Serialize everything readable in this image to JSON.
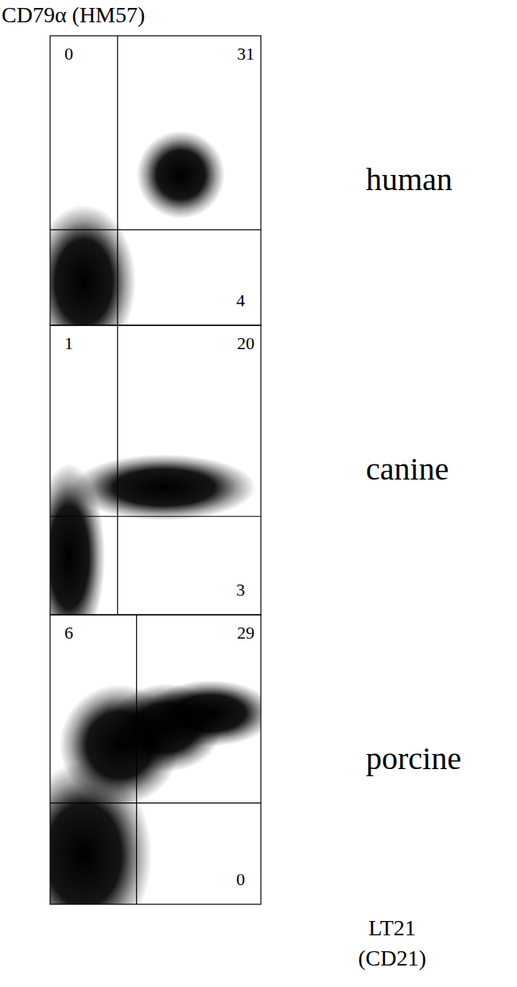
{
  "figure": {
    "y_label": "CD79α (HM57)",
    "x_label_lines": [
      "LT21",
      "(CD21)"
    ]
  },
  "chart_data": [
    {
      "type": "scatter",
      "title": "human",
      "xlim": [
        0,
        100
      ],
      "ylim": [
        0,
        100
      ],
      "tick_labels": false,
      "gate_x": 32,
      "gate_y": 33,
      "quadrant_percentages": {
        "upper_left": 0,
        "upper_right": 31,
        "lower_right": 4
      },
      "populations": [
        {
          "x": 16,
          "y": 15,
          "sx": 13,
          "sy": 14
        },
        {
          "x": 62,
          "y": 52,
          "sx": 11,
          "sy": 8
        }
      ]
    },
    {
      "type": "scatter",
      "title": "canine",
      "xlim": [
        0,
        100
      ],
      "ylim": [
        0,
        100
      ],
      "tick_labels": false,
      "gate_x": 32,
      "gate_y": 34,
      "quadrant_percentages": {
        "upper_left": 1,
        "upper_right": 20,
        "lower_right": 3
      },
      "populations": [
        {
          "x": 9,
          "y": 20,
          "sx": 9,
          "sy": 17
        },
        {
          "x": 54,
          "y": 44,
          "sx": 23,
          "sy": 6
        }
      ]
    },
    {
      "type": "scatter",
      "title": "porcine",
      "xlim": [
        0,
        100
      ],
      "ylim": [
        0,
        100
      ],
      "tick_labels": false,
      "gate_x": 41,
      "gate_y": 35,
      "quadrant_percentages": {
        "upper_left": 6,
        "upper_right": 29,
        "lower_right": 0
      },
      "populations": [
        {
          "x": 16,
          "y": 17,
          "sx": 17,
          "sy": 17
        },
        {
          "x": 33,
          "y": 55,
          "sx": 15,
          "sy": 11
        },
        {
          "x": 55,
          "y": 61,
          "sx": 14,
          "sy": 8
        },
        {
          "x": 76,
          "y": 66,
          "sx": 16,
          "sy": 6
        }
      ]
    }
  ]
}
